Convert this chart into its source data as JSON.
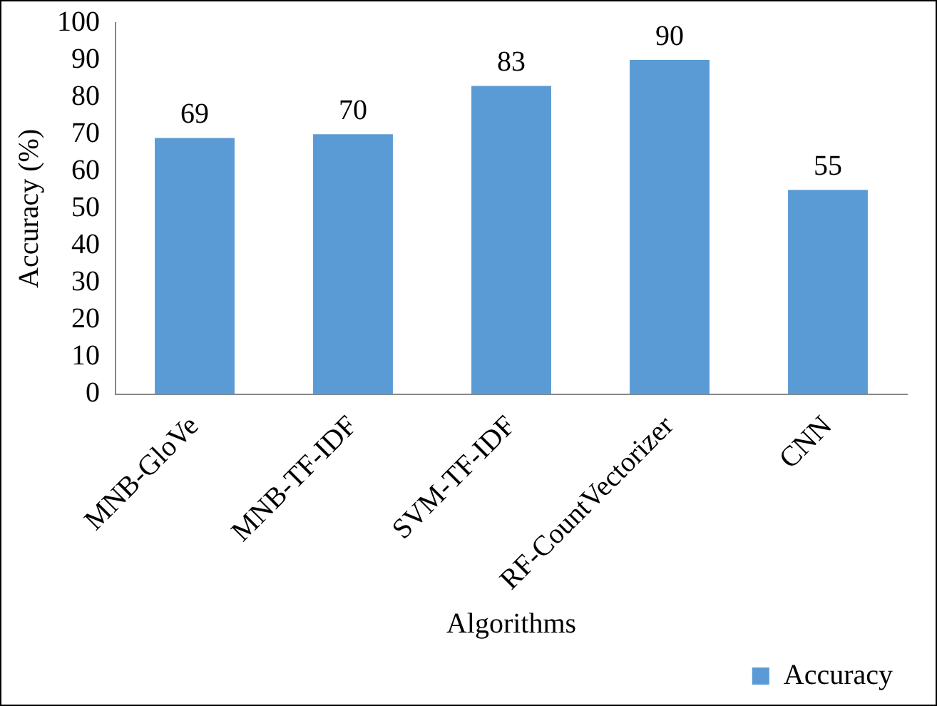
{
  "chart_data": {
    "type": "bar",
    "xlabel": "Algorithms",
    "ylabel": "Accuracy (%)",
    "categories": [
      "MNB-GloVe",
      "MNB-TF-IDF",
      "SVM-TF-IDF",
      "RF-CountVectorizer",
      "CNN"
    ],
    "series": [
      {
        "name": "Accuracy",
        "color": "#5b9bd5",
        "values": [
          69,
          70,
          83,
          90,
          55
        ]
      }
    ],
    "ylim": [
      0,
      100
    ],
    "yticks": [
      0,
      10,
      20,
      30,
      40,
      50,
      60,
      70,
      80,
      90,
      100
    ],
    "grid": false,
    "legend": "bottom right",
    "data_labels": true
  }
}
